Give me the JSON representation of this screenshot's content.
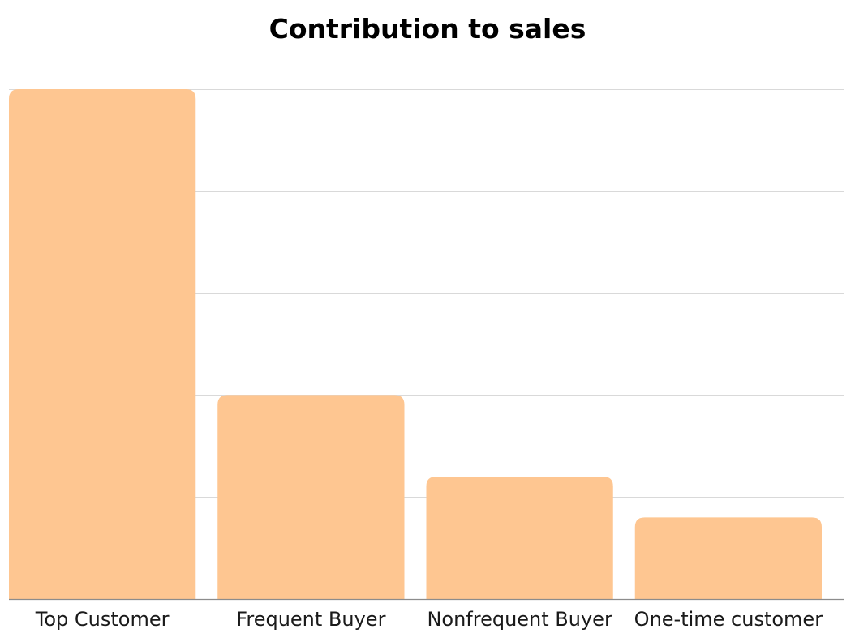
{
  "chart_data": {
    "type": "bar",
    "title": "Contribution to sales",
    "xlabel": "",
    "ylabel": "",
    "categories": [
      "Top Customer",
      "Frequent Buyer",
      "Nonfrequent Buyer",
      "One-time customer"
    ],
    "values": [
      50,
      20,
      12,
      8
    ],
    "ylim": [
      0,
      50
    ],
    "grid": true,
    "bar_color": "#fec691",
    "grid_color": "#d9d9d9",
    "axis_color": "#8c8c8c"
  }
}
